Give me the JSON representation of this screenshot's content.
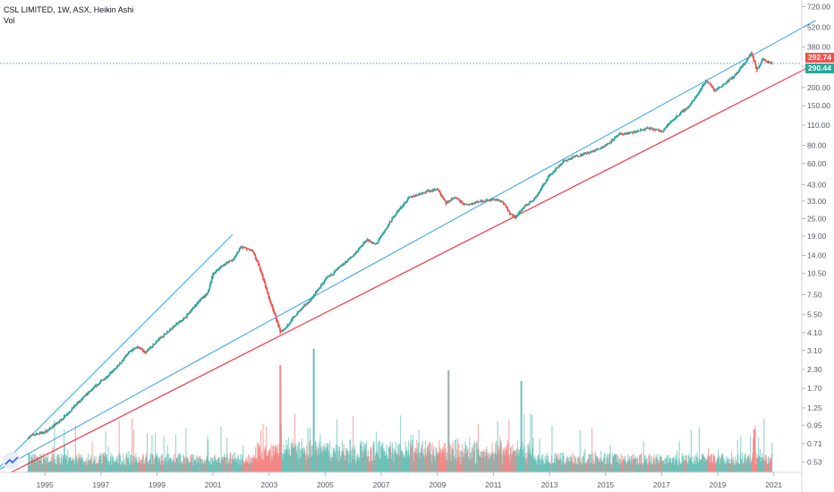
{
  "header": {
    "symbol_line": "CSL LIMITED, 1W, ASX, Heikin Ashi",
    "volume_label": "Vol"
  },
  "price_tags": {
    "upper": {
      "value": "292.74",
      "color": "#ef5350"
    },
    "lower": {
      "value": "290.44",
      "color": "#26a69a"
    }
  },
  "colors": {
    "up": "#26a69a",
    "down": "#ef5350",
    "trendline_blue": "#2196f3",
    "trendline_red": "#f23645",
    "price_line": "#2196f3",
    "axis_text": "#555a66"
  },
  "chart_data": {
    "type": "candlestick",
    "chart_style": "Heikin Ashi",
    "interval": "1W",
    "exchange": "ASX",
    "y_scale": "log",
    "ylim": [
      0.45,
      800
    ],
    "xlim": [
      1993.4,
      2022.0
    ],
    "x_ticks": [
      "1995",
      "1997",
      "1999",
      "2001",
      "2003",
      "2005",
      "2007",
      "2009",
      "2011",
      "2013",
      "2015",
      "2017",
      "2019",
      "2021"
    ],
    "y_ticks": [
      "720.00",
      "520.00",
      "380.00",
      "280.00",
      "200.00",
      "150.00",
      "110.00",
      "80.00",
      "60.00",
      "43.00",
      "33.00",
      "25.00",
      "19.00",
      "14.00",
      "10.50",
      "7.50",
      "5.50",
      "4.10",
      "3.10",
      "2.30",
      "1.70",
      "1.25",
      "0.95",
      "0.71",
      "0.53"
    ],
    "price_path": [
      [
        1994.4,
        0.78
      ],
      [
        1994.6,
        0.82
      ],
      [
        1995.0,
        0.85
      ],
      [
        1995.5,
        1.0
      ],
      [
        1996.0,
        1.25
      ],
      [
        1996.5,
        1.55
      ],
      [
        1997.0,
        1.9
      ],
      [
        1997.5,
        2.3
      ],
      [
        1998.0,
        3.0
      ],
      [
        1998.3,
        3.3
      ],
      [
        1998.6,
        3.0
      ],
      [
        1999.0,
        3.6
      ],
      [
        1999.5,
        4.4
      ],
      [
        2000.0,
        5.2
      ],
      [
        2000.5,
        6.8
      ],
      [
        2000.8,
        7.6
      ],
      [
        2001.0,
        10.5
      ],
      [
        2001.4,
        12.2
      ],
      [
        2001.7,
        13.0
      ],
      [
        2002.0,
        16.0
      ],
      [
        2002.4,
        15.0
      ],
      [
        2002.7,
        11.0
      ],
      [
        2003.0,
        7.0
      ],
      [
        2003.2,
        5.5
      ],
      [
        2003.4,
        4.1
      ],
      [
        2003.6,
        4.5
      ],
      [
        2004.0,
        5.6
      ],
      [
        2004.5,
        7.0
      ],
      [
        2005.0,
        9.5
      ],
      [
        2005.5,
        11.5
      ],
      [
        2006.0,
        14.0
      ],
      [
        2006.5,
        18.0
      ],
      [
        2006.8,
        16.5
      ],
      [
        2007.0,
        19.0
      ],
      [
        2007.5,
        27.0
      ],
      [
        2008.0,
        35.0
      ],
      [
        2008.5,
        38.0
      ],
      [
        2009.0,
        40.0
      ],
      [
        2009.3,
        32.0
      ],
      [
        2009.6,
        35.0
      ],
      [
        2010.0,
        31.0
      ],
      [
        2010.5,
        33.0
      ],
      [
        2011.0,
        34.0
      ],
      [
        2011.3,
        33.0
      ],
      [
        2011.6,
        27.0
      ],
      [
        2011.8,
        25.5
      ],
      [
        2012.0,
        29.0
      ],
      [
        2012.5,
        35.0
      ],
      [
        2013.0,
        50.0
      ],
      [
        2013.5,
        62.0
      ],
      [
        2014.0,
        68.0
      ],
      [
        2014.5,
        72.0
      ],
      [
        2015.0,
        80.0
      ],
      [
        2015.5,
        95.0
      ],
      [
        2016.0,
        98.0
      ],
      [
        2016.5,
        105.0
      ],
      [
        2017.0,
        100.0
      ],
      [
        2017.5,
        125.0
      ],
      [
        2018.0,
        150.0
      ],
      [
        2018.6,
        225.0
      ],
      [
        2018.9,
        190.0
      ],
      [
        2019.2,
        210.0
      ],
      [
        2019.6,
        240.0
      ],
      [
        2020.0,
        300.0
      ],
      [
        2020.2,
        350.0
      ],
      [
        2020.4,
        260.0
      ],
      [
        2020.6,
        320.0
      ],
      [
        2020.8,
        300.0
      ],
      [
        2020.95,
        292.74
      ]
    ],
    "last_price": 292.74,
    "reference_price": 290.44,
    "trendlines": [
      {
        "color": "blue",
        "from": [
          1993.2,
          0.45
        ],
        "to": [
          2001.7,
          19.5
        ]
      },
      {
        "color": "blue",
        "from": [
          1993.2,
          0.45
        ],
        "to": [
          2022.5,
          580.0
        ]
      },
      {
        "color": "red",
        "from": [
          1993.8,
          0.45
        ],
        "to": [
          2022.5,
          292.0
        ]
      }
    ],
    "volume": {
      "shown": true,
      "relative_peaks": [
        [
          2003.4,
          1.0
        ],
        [
          2004.6,
          1.15
        ],
        [
          2009.4,
          0.95
        ],
        [
          2012.0,
          0.85
        ],
        [
          2020.3,
          0.4
        ]
      ]
    },
    "grid": false
  }
}
